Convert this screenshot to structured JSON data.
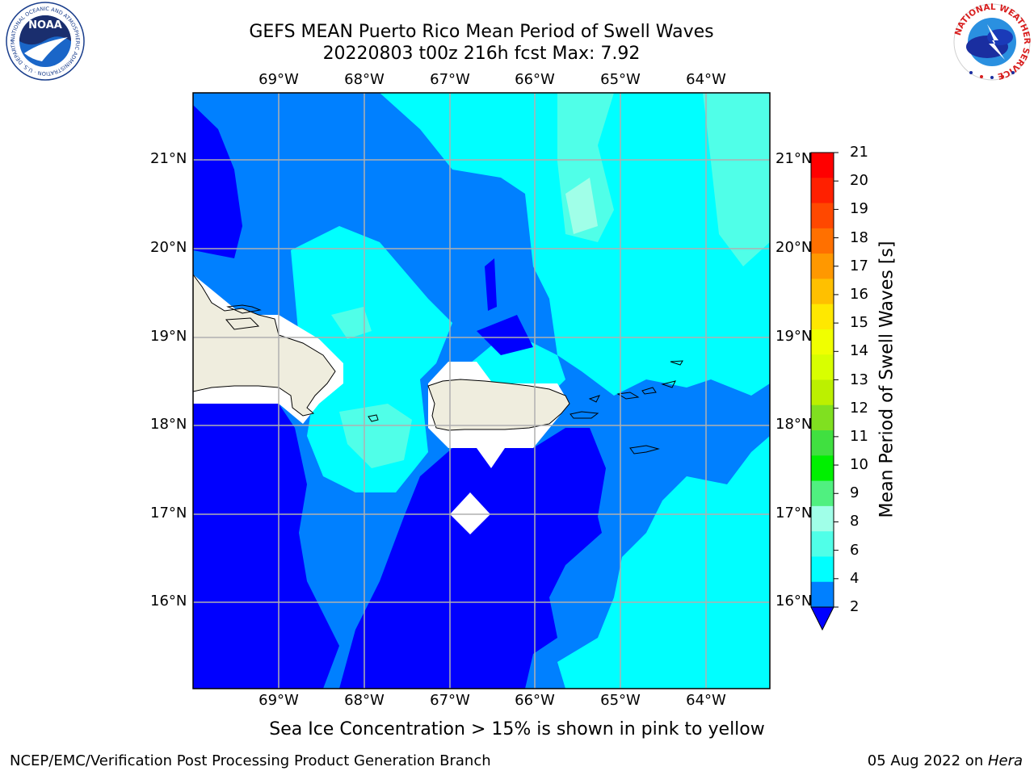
{
  "header": {
    "title_line1": "GEFS MEAN Puerto Rico Mean Period of Swell Waves",
    "title_line2": "20220803 t00z 216h fcst   Max: 7.92"
  },
  "map": {
    "lon_labels": [
      "69°W",
      "68°W",
      "67°W",
      "66°W",
      "65°W",
      "64°W"
    ],
    "lat_labels": [
      "21°N",
      "20°N",
      "19°N",
      "18°N",
      "17°N",
      "16°N"
    ],
    "land_color": "#efedde",
    "coast_color": "#000000",
    "grid_color": "#b0b0b0"
  },
  "colorbar": {
    "label": "Mean Period of Swell Waves [s]",
    "ticks": [
      "21",
      "20",
      "19",
      "18",
      "17",
      "16",
      "15",
      "14",
      "13",
      "12",
      "11",
      "10",
      "9",
      "8",
      "6",
      "4",
      "2"
    ],
    "colors": [
      "#ff0000",
      "#ff2000",
      "#ff4800",
      "#ff7000",
      "#ff9800",
      "#ffc000",
      "#ffe800",
      "#f0ff00",
      "#d8ff00",
      "#bcf000",
      "#80e020",
      "#40e040",
      "#00f000",
      "#50f080",
      "#a0ffe8",
      "#50ffe8",
      "#00ffff",
      "#0080ff"
    ],
    "under_color": "#0000ff"
  },
  "logos": {
    "noaa_text": "NOAA",
    "noaa_ring_text": "NATIONAL OCEANIC AND ATMOSPHERIC ADMINISTRATION · U.S. DEPARTMENT OF COMMERCE",
    "nws_ring_text": "NATIONAL WEATHER SERVICE"
  },
  "footer": {
    "note": "Sea Ice Concentration > 15% is shown in pink to yellow",
    "credit_left": "NCEP/EMC/Verification Post Processing Product Generation Branch",
    "date_text": "05 Aug 2022 on ",
    "machine": "Hera"
  }
}
